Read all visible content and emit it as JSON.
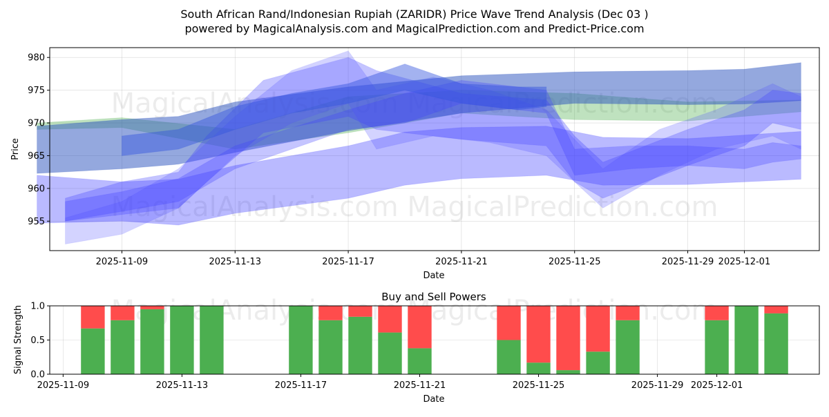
{
  "chart_data": [
    {
      "type": "area",
      "title": "South African Rand/Indonesian Rupiah (ZARIDR) Price Wave Trend Analysis (Dec 03 )",
      "subtitle": "powered by MagicalAnalysis.com and MagicalPrediction.com and Predict-Price.com",
      "xlabel": "Date",
      "ylabel": "Price",
      "ylim": [
        950.5,
        981.5
      ],
      "yticks": [
        955,
        960,
        965,
        970,
        975,
        980
      ],
      "xticks": [
        "2025-11-09",
        "2025-11-13",
        "2025-11-17",
        "2025-11-21",
        "2025-11-25",
        "2025-11-29",
        "2025-12-01"
      ],
      "x_start": "2025-11-06",
      "x_end": "2025-12-04",
      "grid": true,
      "series": [
        {
          "name": "trend-green",
          "color": "#2ca02c",
          "opacity": 0.3,
          "x": [
            "2025-11-06",
            "2025-11-09",
            "2025-11-13",
            "2025-11-17",
            "2025-11-21",
            "2025-11-25",
            "2025-11-29",
            "2025-12-03"
          ],
          "low": [
            969.0,
            969.3,
            966.0,
            968.5,
            971.5,
            970.5,
            970.3,
            971.7
          ],
          "high": [
            970.0,
            970.8,
            969.0,
            974.0,
            975.0,
            974.5,
            973.2,
            973.5
          ]
        },
        {
          "name": "trend-steel-1",
          "color": "#2a52be",
          "opacity": 0.5,
          "x": [
            "2025-11-06",
            "2025-11-09",
            "2025-11-11",
            "2025-11-13",
            "2025-11-17",
            "2025-11-21",
            "2025-11-25",
            "2025-11-29",
            "2025-12-01",
            "2025-12-03"
          ],
          "low": [
            962.3,
            963.0,
            963.7,
            965.5,
            968.8,
            971.5,
            973.0,
            972.8,
            972.9,
            973.4
          ],
          "high": [
            969.5,
            970.5,
            971.0,
            973.2,
            975.5,
            977.2,
            977.8,
            978.0,
            978.2,
            979.2
          ]
        },
        {
          "name": "wave-blue-1",
          "color": "#3a3aff",
          "opacity": 0.35,
          "x": [
            "2025-11-06",
            "2025-11-09",
            "2025-11-11",
            "2025-11-13",
            "2025-11-17",
            "2025-11-19",
            "2025-11-21",
            "2025-11-24",
            "2025-11-26",
            "2025-11-29",
            "2025-12-03"
          ],
          "low": [
            954.7,
            955.0,
            954.4,
            956.2,
            958.5,
            960.5,
            961.5,
            962.0,
            960.5,
            960.6,
            961.4
          ],
          "high": [
            962.0,
            961.0,
            961.4,
            963.5,
            966.5,
            968.6,
            969.3,
            969.5,
            967.8,
            967.6,
            968.7
          ]
        },
        {
          "name": "wave-blue-2",
          "color": "#3a3aff",
          "opacity": 0.3,
          "x": [
            "2025-11-07",
            "2025-11-09",
            "2025-11-11",
            "2025-11-12",
            "2025-11-14",
            "2025-11-17",
            "2025-11-18",
            "2025-11-21",
            "2025-11-24",
            "2025-11-25",
            "2025-11-26",
            "2025-11-29",
            "2025-12-01",
            "2025-12-02",
            "2025-12-03"
          ],
          "low": [
            955.0,
            956.0,
            957.0,
            961.0,
            968.5,
            971.0,
            969.0,
            967.5,
            966.5,
            961.0,
            958.5,
            963.5,
            966.5,
            970.0,
            969.0
          ],
          "high": [
            958.5,
            961.0,
            962.5,
            968.0,
            976.5,
            980.0,
            978.0,
            974.5,
            973.5,
            968.0,
            964.0,
            969.0,
            972.0,
            975.0,
            974.5
          ]
        },
        {
          "name": "wave-blue-3",
          "color": "#5050ff",
          "opacity": 0.25,
          "x": [
            "2025-11-07",
            "2025-11-09",
            "2025-11-11",
            "2025-11-13",
            "2025-11-15",
            "2025-11-17",
            "2025-11-18",
            "2025-11-20",
            "2025-11-22",
            "2025-11-24",
            "2025-11-26",
            "2025-11-28",
            "2025-11-30",
            "2025-12-02",
            "2025-12-03"
          ],
          "low": [
            951.5,
            953.0,
            957.0,
            965.0,
            970.0,
            973.0,
            966.0,
            968.0,
            967.0,
            965.0,
            957.0,
            962.0,
            966.0,
            968.0,
            966.0
          ],
          "high": [
            955.5,
            958.0,
            963.0,
            971.0,
            978.0,
            981.0,
            975.0,
            977.0,
            975.0,
            972.0,
            963.0,
            969.0,
            972.0,
            976.0,
            974.0
          ]
        },
        {
          "name": "wave-blue-4",
          "color": "#4040ff",
          "opacity": 0.3,
          "x": [
            "2025-11-07",
            "2025-11-09",
            "2025-11-11",
            "2025-11-13",
            "2025-11-17",
            "2025-11-19",
            "2025-11-21",
            "2025-11-24",
            "2025-11-25",
            "2025-11-27",
            "2025-11-29",
            "2025-12-01",
            "2025-12-02",
            "2025-12-03"
          ],
          "low": [
            955.0,
            956.5,
            958.0,
            963.0,
            969.0,
            970.0,
            973.0,
            971.5,
            962.0,
            963.0,
            963.5,
            963.0,
            964.0,
            964.5
          ],
          "high": [
            958.0,
            959.5,
            961.5,
            966.5,
            972.0,
            974.5,
            976.5,
            975.0,
            966.0,
            966.5,
            966.5,
            966.0,
            967.0,
            966.5
          ]
        },
        {
          "name": "trend-steel-2",
          "color": "#3355dd",
          "opacity": 0.45,
          "x": [
            "2025-11-09",
            "2025-11-11",
            "2025-11-13",
            "2025-11-15",
            "2025-11-17",
            "2025-11-19",
            "2025-11-21",
            "2025-11-23",
            "2025-11-24"
          ],
          "low": [
            965.0,
            966.0,
            969.0,
            971.5,
            973.0,
            975.0,
            973.0,
            972.0,
            972.5
          ],
          "high": [
            968.0,
            969.0,
            972.5,
            974.5,
            976.0,
            979.0,
            976.0,
            975.5,
            975.5
          ]
        }
      ]
    },
    {
      "type": "bar",
      "title": "Buy and Sell Powers",
      "xlabel": "Date",
      "ylabel": "Signal Strength",
      "ylim": [
        0,
        1
      ],
      "yticks": [
        "0.0",
        "0.5",
        "1.0"
      ],
      "xticks": [
        "2025-11-09",
        "2025-11-13",
        "2025-11-17",
        "2025-11-21",
        "2025-11-25",
        "2025-11-29",
        "2025-12-01"
      ],
      "x_start": "2025-11-09",
      "x_end": "2025-12-04",
      "buy_color": "#4caf50",
      "sell_color": "#ff4c4c",
      "categories": [
        "2025-11-10",
        "2025-11-11",
        "2025-11-12",
        "2025-11-13",
        "2025-11-14",
        "2025-11-17",
        "2025-11-18",
        "2025-11-19",
        "2025-11-20",
        "2025-11-21",
        "2025-11-24",
        "2025-11-25",
        "2025-11-26",
        "2025-11-27",
        "2025-11-28",
        "2025-12-01",
        "2025-12-02",
        "2025-12-03"
      ],
      "series": [
        {
          "name": "Buy",
          "values": [
            0.67,
            0.79,
            0.95,
            1.0,
            1.0,
            1.0,
            0.79,
            0.84,
            0.61,
            0.38,
            0.5,
            0.17,
            0.06,
            0.33,
            0.79,
            0.79,
            1.0,
            0.89
          ]
        },
        {
          "name": "Sell",
          "values": [
            0.33,
            0.21,
            0.05,
            0.0,
            0.0,
            0.0,
            0.21,
            0.16,
            0.39,
            0.62,
            0.5,
            0.83,
            0.94,
            0.67,
            0.21,
            0.21,
            0.0,
            0.11
          ]
        }
      ]
    }
  ],
  "watermarks": {
    "top_line_1": "MagicalAnalysis.com   MagicalPrediction.com",
    "top_line_2": "MagicalAnalysis.com   MagicalPrediction.com",
    "bottom": "MagicalAnalysis.com   MagicalPrediction.com"
  }
}
